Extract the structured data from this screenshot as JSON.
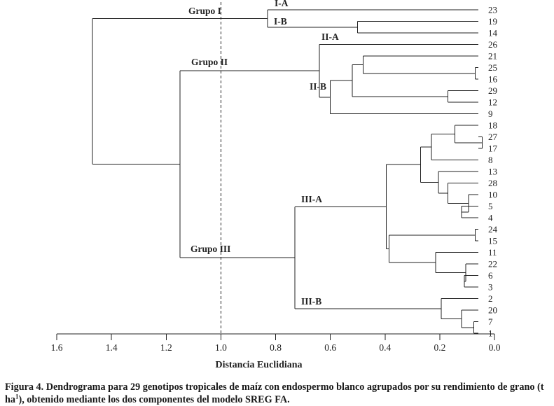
{
  "chart_data": {
    "type": "dendrogram",
    "xlabel": "Distancia Euclidiana",
    "xlim": [
      1.6,
      0.0
    ],
    "xticks": [
      "1.6",
      "1.4",
      "1.2",
      "1.0",
      "0.8",
      "0.6",
      "0.4",
      "0.2",
      "0.0"
    ],
    "reference_line_x": 1.0,
    "leaves": [
      "23",
      "19",
      "14",
      "26",
      "21",
      "25",
      "16",
      "29",
      "12",
      "9",
      "18",
      "27",
      "17",
      "8",
      "13",
      "28",
      "10",
      "5",
      "4",
      "24",
      "15",
      "11",
      "22",
      "6",
      "3",
      "2",
      "20",
      "7",
      "1"
    ],
    "merges": [
      {
        "id": "n19_14",
        "children": [
          "19",
          "14"
        ],
        "height": 0.5
      },
      {
        "id": "grupoI",
        "children": [
          "23",
          "n19_14"
        ],
        "height": 0.83
      },
      {
        "id": "n25_16",
        "children": [
          "25",
          "16"
        ],
        "height": 0.07
      },
      {
        "id": "n21",
        "children": [
          "21",
          "n25_16"
        ],
        "height": 0.48
      },
      {
        "id": "n29_12",
        "children": [
          "29",
          "12"
        ],
        "height": 0.17
      },
      {
        "id": "n21b",
        "children": [
          "n21",
          "n29_12"
        ],
        "height": 0.52
      },
      {
        "id": "IIB",
        "children": [
          "n21b",
          "9"
        ],
        "height": 0.6
      },
      {
        "id": "grupoII",
        "children": [
          "26",
          "IIB"
        ],
        "height": 0.64
      },
      {
        "id": "n27_17",
        "children": [
          "27",
          "17"
        ],
        "height": 0.045
      },
      {
        "id": "n18",
        "children": [
          "18",
          "n27_17"
        ],
        "height": 0.145
      },
      {
        "id": "n18_8",
        "children": [
          "n18",
          "8"
        ],
        "height": 0.23
      },
      {
        "id": "n5_4",
        "children": [
          "5",
          "4"
        ],
        "height": 0.12
      },
      {
        "id": "n10",
        "children": [
          "10",
          "n5_4"
        ],
        "height": 0.095
      },
      {
        "id": "n28",
        "children": [
          "28",
          "n10"
        ],
        "height": 0.17
      },
      {
        "id": "n13",
        "children": [
          "13",
          "n28"
        ],
        "height": 0.205
      },
      {
        "id": "nA1",
        "children": [
          "n18_8",
          "n13"
        ],
        "height": 0.27
      },
      {
        "id": "n24_15",
        "children": [
          "24",
          "15"
        ],
        "height": 0.07
      },
      {
        "id": "n6_3",
        "children": [
          "6",
          "3"
        ],
        "height": 0.11
      },
      {
        "id": "n22",
        "children": [
          "22",
          "n6_3"
        ],
        "height": 0.105
      },
      {
        "id": "n11",
        "children": [
          "11",
          "n22"
        ],
        "height": 0.215
      },
      {
        "id": "nA2",
        "children": [
          "n24_15",
          "n11"
        ],
        "height": 0.385
      },
      {
        "id": "IIIA",
        "children": [
          "nA1",
          "nA2"
        ],
        "height": 0.395
      },
      {
        "id": "n7_1",
        "children": [
          "7",
          "1"
        ],
        "height": 0.075
      },
      {
        "id": "n20",
        "children": [
          "20",
          "n7_1"
        ],
        "height": 0.12
      },
      {
        "id": "IIIB",
        "children": [
          "2",
          "n20"
        ],
        "height": 0.195
      },
      {
        "id": "grupoIII",
        "children": [
          "IIIA",
          "IIIB"
        ],
        "height": 0.73
      },
      {
        "id": "nII_III",
        "children": [
          "grupoII",
          "grupoIII"
        ],
        "height": 1.15
      },
      {
        "id": "root",
        "children": [
          "grupoI",
          "nII_III"
        ],
        "height": 1.47
      }
    ],
    "cluster_labels": [
      {
        "text": "Grupo I",
        "node": "grupoI"
      },
      {
        "text": "I-A",
        "node": "grupoI"
      },
      {
        "text": "I-B",
        "node": "n19_14"
      },
      {
        "text": "Grupo II",
        "node": "grupoII"
      },
      {
        "text": "II-A",
        "node": "grupoII"
      },
      {
        "text": "II-B",
        "node": "IIB"
      },
      {
        "text": "Grupo III",
        "node": "grupoIII"
      },
      {
        "text": "III-A",
        "node": "IIIA"
      },
      {
        "text": "III-B",
        "node": "IIIB"
      }
    ]
  },
  "caption": {
    "part1": "Figura 4. Dendrograma para 29 genotipos tropicales de maíz con endospermo blanco agrupados por su rendimiento de grano (t ha",
    "sup": "1",
    "part2": "), obtenido mediante los dos componentes del modelo SREG FA."
  }
}
